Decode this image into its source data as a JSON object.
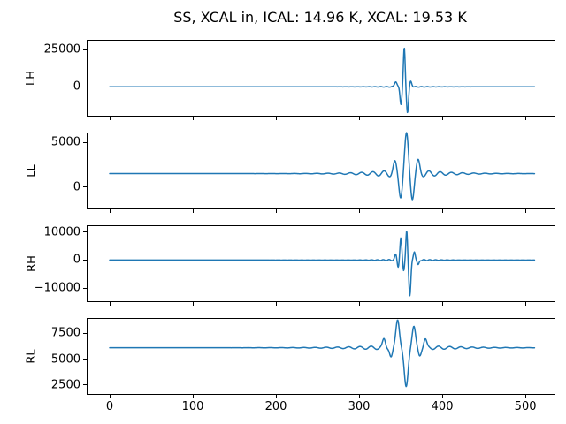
{
  "figure": {
    "title": "SS, XCAL in, ICAL: 14.96 K, XCAL: 19.53 K",
    "background_color": "#ffffff",
    "spine_color": "#000000"
  },
  "chart_data": {
    "type": "line",
    "title": "SS, XCAL in, ICAL: 14.96 K, XCAL: 19.53 K",
    "line_color": "#1f77b4",
    "line_width": 1.5,
    "grid": false,
    "legend": null,
    "x_ticks": [
      0,
      100,
      200,
      300,
      400,
      500
    ],
    "x_data_range": [
      0,
      511
    ],
    "x_display_range": [
      -26.6,
      535.0
    ],
    "sample_step": 0.5,
    "subplots": [
      {
        "ylabel": "LH",
        "ylim": [
          -19400,
          31000
        ],
        "y_ticks": [
          0,
          25000
        ],
        "baseline": 0,
        "burst": {
          "center": 355,
          "peak": 26500,
          "trough": -17500
        },
        "model": {
          "bumps": [
            [
              3500,
              344,
              2.0
            ],
            [
              -12000,
              350.3,
              1.6
            ],
            [
              26500,
              354.3,
              1.5
            ],
            [
              -17500,
              358.2,
              1.7
            ],
            [
              3800,
              362,
              1.8
            ]
          ],
          "ripple": {
            "amp": 450,
            "period": 7,
            "center": 354,
            "decay": 26,
            "hole": 9
          }
        }
      },
      {
        "ylabel": "LL",
        "ylim": [
          -2400,
          6000
        ],
        "y_ticks": [
          0,
          5000
        ],
        "baseline": 1500,
        "burst": {
          "center": 357,
          "peak": 6100,
          "trough": -1300
        },
        "model": {
          "bumps": [
            [
              1150,
              343,
              2.8
            ],
            [
              -2600,
              350,
              2.9
            ],
            [
              4600,
              357,
              3.1
            ],
            [
              -2800,
              364,
              2.9
            ],
            [
              1300,
              371,
              2.8
            ]
          ],
          "ripple": {
            "amp": 700,
            "period": 13.5,
            "center": 357,
            "decay": 34,
            "hole": 13
          }
        }
      },
      {
        "ylabel": "RH",
        "ylim": [
          -14600,
          12050
        ],
        "y_ticks": [
          -10000,
          0,
          10000
        ],
        "baseline": 0,
        "burst": {
          "center": 357,
          "peak": 10500,
          "trough": -12600
        },
        "model": {
          "bumps": [
            [
              2000,
              344,
              1.6
            ],
            [
              -2500,
              347,
              1.4
            ],
            [
              7900,
              350.2,
              1.5
            ],
            [
              -3800,
              353.6,
              1.3
            ],
            [
              10500,
              357.2,
              1.4
            ],
            [
              -12600,
              361,
              1.7
            ],
            [
              3000,
              366.5,
              1.6
            ],
            [
              -1800,
              371,
              1.6
            ]
          ],
          "ripple": {
            "amp": 500,
            "period": 7,
            "center": 357,
            "decay": 24,
            "hole": 11
          }
        }
      },
      {
        "ylabel": "RL",
        "ylim": [
          1640,
          8880
        ],
        "y_ticks": [
          2500,
          5000,
          7500
        ],
        "baseline": 6100,
        "burst": {
          "center": 356.6,
          "peak": 8800,
          "trough": 2400
        },
        "model": {
          "bumps": [
            [
              800,
              330,
              2.4
            ],
            [
              -900,
              338.5,
              2.4
            ],
            [
              2700,
              346.3,
              3.0
            ],
            [
              -3750,
              356.6,
              3.3
            ],
            [
              2050,
              365.8,
              2.9
            ],
            [
              -750,
              372.8,
              2.4
            ],
            [
              800,
              379.5,
              2.4
            ]
          ],
          "ripple": {
            "amp": 420,
            "period": 13.5,
            "center": 355,
            "decay": 45,
            "hole": 26
          }
        }
      }
    ]
  }
}
